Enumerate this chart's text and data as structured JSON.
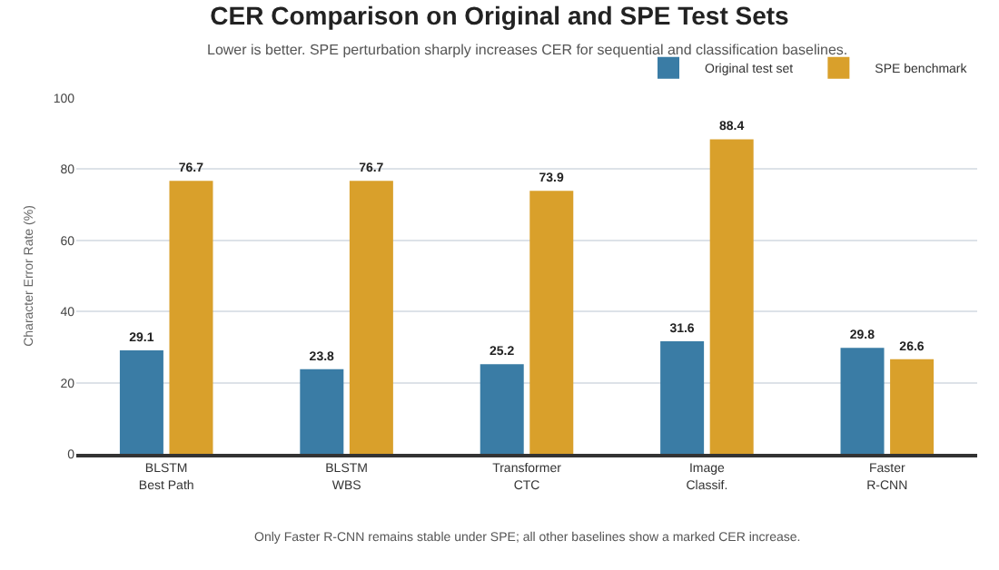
{
  "chart_data": {
    "type": "bar",
    "title": "CER Comparison on Original and SPE Test Sets",
    "subtitle": "Lower is better. SPE perturbation sharply increases CER for sequential and classification baselines.",
    "ylabel": "Character Error Rate (%)",
    "categories": [
      "BLSTM\nBest Path",
      "BLSTM\nWBS",
      "Transformer\nCTC",
      "Image\nClassif.",
      "Faster\nR-CNN"
    ],
    "series": [
      {
        "name": "Original test set",
        "color": "#3a7ca5",
        "values": [
          29.1,
          23.8,
          25.2,
          31.6,
          29.8
        ]
      },
      {
        "name": "SPE benchmark",
        "color": "#d9a02b",
        "values": [
          76.7,
          76.7,
          73.9,
          88.4,
          26.6
        ]
      }
    ],
    "ylim": [
      0,
      100
    ],
    "yticks": [
      0,
      20,
      40,
      60,
      80,
      100
    ],
    "grid": "y",
    "legend": "top right",
    "data_labels": true,
    "annotations": [
      "Only Faster R-CNN remains stable under SPE; all other baselines show a marked CER increase."
    ]
  }
}
